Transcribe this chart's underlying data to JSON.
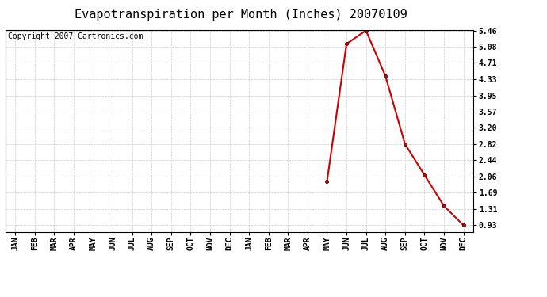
{
  "title": "Evapotranspiration per Month (Inches) 20070109",
  "copyright": "Copyright 2007 Cartronics.com",
  "x_labels": [
    "JAN",
    "FEB",
    "MAR",
    "APR",
    "MAY",
    "JUN",
    "JUL",
    "AUG",
    "SEP",
    "OCT",
    "NOV",
    "DEC",
    "JAN",
    "FEB",
    "MAR",
    "APR",
    "MAY",
    "JUN",
    "JUL",
    "AUG",
    "SEP",
    "OCT",
    "NOV",
    "DEC"
  ],
  "data_x_indices": [
    16,
    17,
    18,
    19,
    20,
    21,
    22,
    23
  ],
  "data_values": [
    1.95,
    5.15,
    5.46,
    4.4,
    2.82,
    2.1,
    1.38,
    0.93
  ],
  "y_ticks": [
    0.93,
    1.31,
    1.69,
    2.06,
    2.44,
    2.82,
    3.2,
    3.57,
    3.95,
    4.33,
    4.71,
    5.08,
    5.46
  ],
  "y_min": 0.93,
  "y_max": 5.46,
  "line_color": "#cc0000",
  "marker": "o",
  "marker_color": "#cc0000",
  "marker_size": 3,
  "background_color": "#ffffff",
  "plot_bg_color": "#ffffff",
  "grid_color": "#cccccc",
  "title_fontsize": 11,
  "copyright_fontsize": 7,
  "tick_fontsize": 7,
  "ytick_fontsize": 7
}
